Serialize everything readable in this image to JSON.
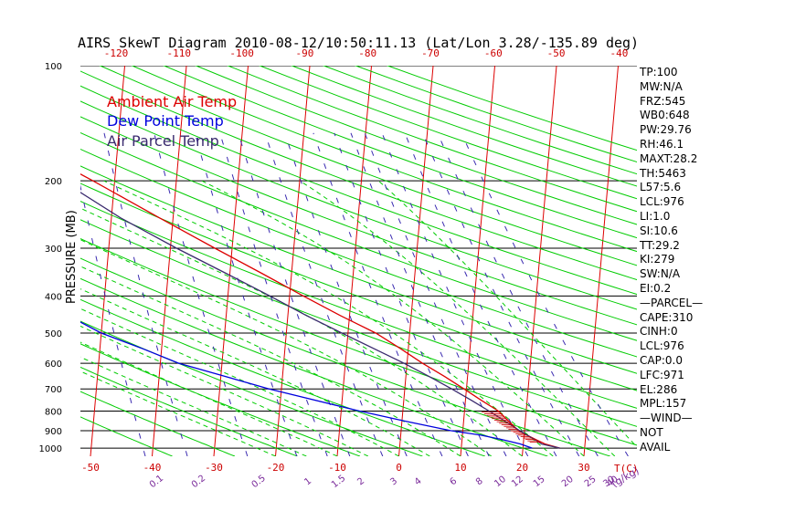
{
  "title": "AIRS SkewT Diagram 2010-08-12/10:50:11.13 (Lat/Lon 3.28/-135.89 deg)",
  "ylabel": "PRESSURE (MB)",
  "xlabel": "T(C)",
  "mixing_label": "(g/kg)",
  "legend": [
    {
      "label": "Ambient Air Temp",
      "color": "#dd0000"
    },
    {
      "label": "Dew Point Temp",
      "color": "#0000dd"
    },
    {
      "label": "Air Parcel Temp",
      "color": "#3a2a6e"
    }
  ],
  "colors": {
    "isotherm": "#dd0000",
    "dry_adiabat": "#00cc00",
    "moist_adiabat": "#00cc00",
    "mixing_ratio": "#3a2ab0",
    "isobar": "#000000",
    "axis_text": "#cc0000",
    "mixing_text": "#7a2a9a"
  },
  "chart_data": {
    "type": "skew-t log-p",
    "pressure_ticks": [
      100,
      200,
      300,
      400,
      500,
      600,
      700,
      800,
      900,
      1000
    ],
    "bottom_temp_ticks": [
      -50,
      -40,
      -30,
      -20,
      -10,
      0,
      10,
      20,
      30
    ],
    "top_temp_ticks": [
      -120,
      -110,
      -100,
      -90,
      -80,
      -70,
      -60,
      -50,
      -40
    ],
    "mixing_ratio_labels": [
      "0.1",
      "0.2",
      "0.5",
      "1",
      "1.5",
      "2",
      "3",
      "4",
      "6",
      "8",
      "10",
      "12",
      "15",
      "20",
      "25",
      "30",
      "40"
    ],
    "mixing_ratio_values": [
      0.1,
      0.2,
      0.5,
      1,
      1.5,
      2,
      3,
      4,
      6,
      8,
      10,
      12,
      15,
      20,
      25,
      30,
      40
    ],
    "isotherm_range": [
      -150,
      40
    ],
    "ylim": [
      1050,
      100
    ],
    "series": [
      {
        "name": "Ambient Air Temp",
        "points": [
          [
            1000,
            26
          ],
          [
            975,
            23.5
          ],
          [
            950,
            22
          ],
          [
            925,
            20.5
          ],
          [
            900,
            19
          ],
          [
            850,
            17.3
          ],
          [
            800,
            15.5
          ],
          [
            750,
            12.6
          ],
          [
            700,
            9.6
          ],
          [
            650,
            6.3
          ],
          [
            600,
            2.5
          ],
          [
            550,
            -1.2
          ],
          [
            500,
            -5.5
          ],
          [
            450,
            -11.5
          ],
          [
            400,
            -17.8
          ],
          [
            350,
            -24.7
          ],
          [
            300,
            -32.8
          ],
          [
            250,
            -42.2
          ],
          [
            200,
            -53.5
          ],
          [
            175,
            -60.5
          ],
          [
            150,
            -69
          ],
          [
            125,
            -72
          ],
          [
            100,
            -73
          ]
        ]
      },
      {
        "name": "Dew Point Temp",
        "points": [
          [
            1000,
            21.5
          ],
          [
            975,
            19.5
          ],
          [
            950,
            16.5
          ],
          [
            925,
            13
          ],
          [
            900,
            8
          ],
          [
            850,
            0.5
          ],
          [
            800,
            -7
          ],
          [
            700,
            -22
          ],
          [
            600,
            -37
          ],
          [
            550,
            -43
          ],
          [
            500,
            -50
          ],
          [
            400,
            -62
          ],
          [
            350,
            -69
          ],
          [
            300,
            -76
          ],
          [
            250,
            -84
          ],
          [
            200,
            -92
          ],
          [
            175,
            -94
          ],
          [
            150,
            -96
          ],
          [
            125,
            -97
          ],
          [
            100,
            -98
          ]
        ]
      },
      {
        "name": "Air Parcel Temp",
        "points": [
          [
            1000,
            26
          ],
          [
            976,
            23
          ],
          [
            950,
            21.8
          ],
          [
            900,
            19.2
          ],
          [
            850,
            16.7
          ],
          [
            800,
            14
          ],
          [
            750,
            11
          ],
          [
            700,
            7.6
          ],
          [
            650,
            3.8
          ],
          [
            600,
            -0.5
          ],
          [
            550,
            -5.5
          ],
          [
            500,
            -11
          ],
          [
            450,
            -17
          ],
          [
            400,
            -23.2
          ],
          [
            350,
            -30.5
          ],
          [
            300,
            -39
          ],
          [
            250,
            -48.5
          ],
          [
            200,
            -58.5
          ],
          [
            175,
            -64
          ],
          [
            157,
            -69
          ],
          [
            150,
            -71
          ],
          [
            125,
            -79
          ],
          [
            100,
            -87
          ]
        ]
      }
    ],
    "wind": "NOT AVAIL"
  },
  "stats": [
    "TP:100",
    "MW:N/A",
    "FRZ:545",
    "WB0:648",
    "PW:29.76",
    "RH:46.1",
    "MAXT:28.2",
    "TH:5463",
    "L57:5.6",
    "LCL:976",
    "LI:1.0",
    "SI:10.6",
    "TT:29.2",
    "KI:279",
    "SW:N/A",
    "EI:0.2",
    "—PARCEL—",
    "CAPE:310",
    "CINH:0",
    "LCL:976",
    "CAP:0.0",
    "LFC:971",
    "EL:286",
    "MPL:157",
    "—WIND—",
    "NOT",
    "AVAIL"
  ]
}
